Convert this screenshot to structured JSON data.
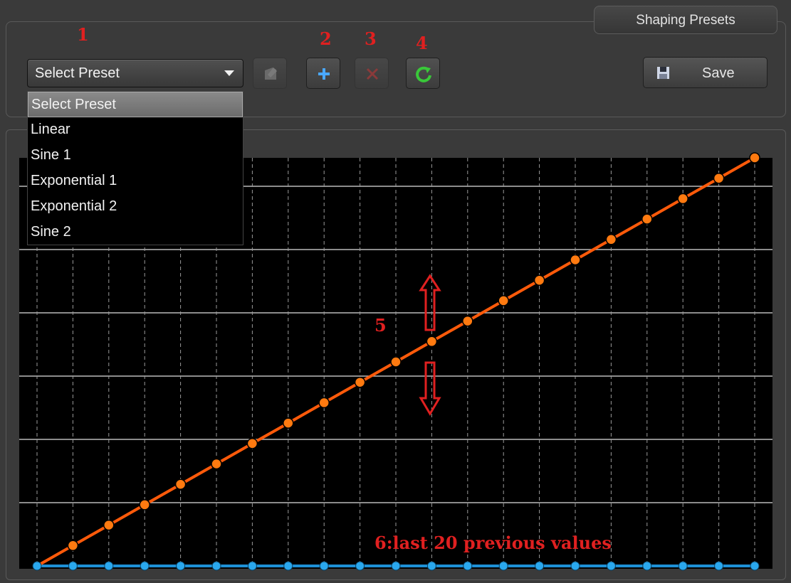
{
  "panel": {
    "tab_label": "Shaping Presets"
  },
  "callouts": {
    "c1": "1",
    "c2": "2",
    "c3": "3",
    "c4": "4",
    "c5": "5",
    "c6": "6:last 20 previous values"
  },
  "preset_select": {
    "value": "Select Preset"
  },
  "dropdown": {
    "items": [
      {
        "label": "Select Preset",
        "selected": true
      },
      {
        "label": "Linear"
      },
      {
        "label": "Sine 1"
      },
      {
        "label": "Exponential 1"
      },
      {
        "label": "Exponential 2"
      },
      {
        "label": "Sine 2"
      }
    ]
  },
  "toolbar": {
    "edit_icon": "edit-icon",
    "add_icon": "plus-icon",
    "delete_icon": "close-icon",
    "reset_icon": "refresh-icon",
    "save_label": "Save",
    "save_icon": "floppy-disk-icon"
  },
  "colors": {
    "curve": "#ff5a0a",
    "curve_point": "#ff7a10",
    "baseline": "#1e90d6",
    "baseline_point": "#2aa8ee",
    "callout": "#e02020",
    "add_icon": "#4aa8ff",
    "reset_icon": "#39c839",
    "delete_icon": "#8a3a3a"
  },
  "chart_data": {
    "type": "line",
    "series": [
      {
        "values": [
          0,
          0.05,
          0.1,
          0.15,
          0.2,
          0.25,
          0.3,
          0.35,
          0.4,
          0.45,
          0.5,
          0.55,
          0.6,
          0.65,
          0.7,
          0.75,
          0.8,
          0.85,
          0.9,
          0.95,
          1.0
        ]
      },
      {
        "values": [
          0,
          0,
          0,
          0,
          0,
          0,
          0,
          0,
          0,
          0,
          0,
          0,
          0,
          0,
          0,
          0,
          0,
          0,
          0,
          0,
          0
        ]
      }
    ],
    "xlim": [
      0,
      20
    ],
    "ylim": [
      0,
      1
    ],
    "grid": true
  }
}
